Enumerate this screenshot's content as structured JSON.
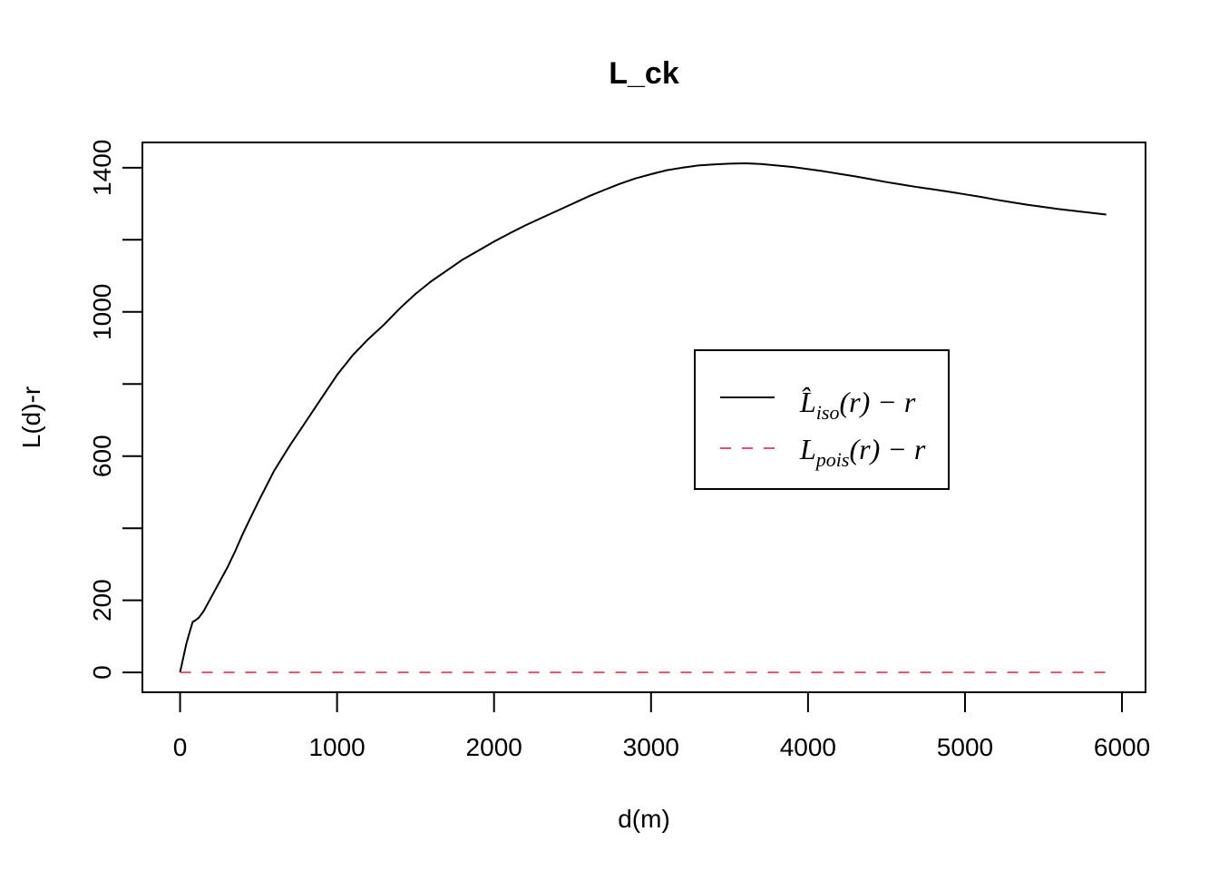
{
  "chart_data": {
    "type": "line",
    "title": "L_ck",
    "xlabel": "d(m)",
    "ylabel": "L(d)-r",
    "xlim": [
      -240,
      6150
    ],
    "ylim": [
      -55,
      1470
    ],
    "x_ticks": [
      0,
      1000,
      2000,
      3000,
      4000,
      5000,
      6000
    ],
    "y_ticks": [
      0,
      200,
      400,
      600,
      800,
      1000,
      1200,
      1400
    ],
    "y_tick_labels": [
      "0",
      "200",
      "",
      "600",
      "",
      "1000",
      "",
      "1400"
    ],
    "grid": false,
    "legend_position": "center-right",
    "series": [
      {
        "name": "iso",
        "legend_main": "L̂",
        "legend_sub": "iso",
        "legend_suffix": "(r) − r",
        "color": "#000000",
        "dash": "solid",
        "x": [
          0,
          20,
          40,
          60,
          80,
          100,
          120,
          150,
          200,
          250,
          300,
          350,
          400,
          450,
          500,
          600,
          700,
          800,
          900,
          1000,
          1100,
          1200,
          1300,
          1400,
          1500,
          1600,
          1700,
          1800,
          1900,
          2000,
          2100,
          2200,
          2300,
          2400,
          2500,
          2600,
          2700,
          2800,
          2900,
          3000,
          3100,
          3200,
          3300,
          3400,
          3500,
          3600,
          3700,
          3800,
          3900,
          4000,
          4100,
          4200,
          4300,
          4400,
          4500,
          4600,
          4700,
          4800,
          4900,
          5000,
          5100,
          5200,
          5300,
          5400,
          5500,
          5600,
          5700,
          5800,
          5900
        ],
        "y": [
          0,
          40,
          80,
          110,
          140,
          145,
          152,
          170,
          210,
          250,
          290,
          335,
          385,
          430,
          475,
          560,
          630,
          695,
          760,
          825,
          880,
          925,
          965,
          1010,
          1050,
          1085,
          1115,
          1145,
          1170,
          1195,
          1218,
          1240,
          1260,
          1280,
          1300,
          1320,
          1338,
          1355,
          1370,
          1382,
          1393,
          1400,
          1406,
          1409,
          1411,
          1412,
          1410,
          1406,
          1402,
          1396,
          1390,
          1383,
          1376,
          1368,
          1360,
          1353,
          1346,
          1340,
          1333,
          1326,
          1319,
          1311,
          1304,
          1297,
          1291,
          1285,
          1280,
          1275,
          1270
        ]
      },
      {
        "name": "pois",
        "legend_main": "L",
        "legend_sub": "pois",
        "legend_suffix": "(r) − r",
        "color": "#DF536B",
        "dash": "dashed",
        "x": [
          0,
          5900
        ],
        "y": [
          0,
          0
        ]
      }
    ]
  }
}
